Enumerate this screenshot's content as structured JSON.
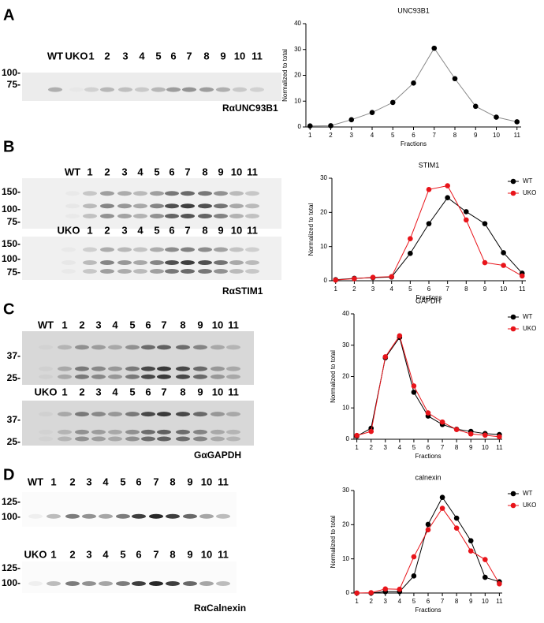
{
  "chart_data": [
    {
      "type": "line",
      "title": "UNC93B1",
      "xlabel": "Fractions",
      "ylabel": "Normalized to total",
      "x": [
        1,
        2,
        3,
        4,
        5,
        6,
        7,
        8,
        9,
        10,
        11
      ],
      "xlim": [
        0.8,
        11.2
      ],
      "xticks": [
        1,
        2,
        3,
        4,
        5,
        6,
        7,
        8,
        9,
        10,
        11
      ],
      "ylim": [
        0,
        40
      ],
      "yticks": [
        0,
        10,
        20,
        30,
        40
      ],
      "values": [
        0.4,
        0.5,
        2.8,
        5.6,
        9.5,
        17,
        30.5,
        18.7,
        8,
        3.8,
        2
      ],
      "line_color": "#888888",
      "marker_color": "#000000"
    },
    {
      "type": "line",
      "title": "STIM1",
      "xlabel": "Fractions",
      "ylabel": "Normalized to total",
      "x": [
        1,
        2,
        3,
        4,
        5,
        6,
        7,
        8,
        9,
        10,
        11
      ],
      "xlim": [
        0.8,
        11.2
      ],
      "xticks": [
        1,
        2,
        3,
        4,
        5,
        6,
        7,
        8,
        9,
        10,
        11
      ],
      "ylim": [
        0,
        30
      ],
      "yticks": [
        0,
        10,
        20,
        30
      ],
      "legend": "upper right",
      "series": [
        {
          "name": "WT",
          "color": "#000000",
          "values": [
            0.3,
            0.7,
            0.9,
            1.1,
            8,
            16.7,
            24.3,
            20.2,
            16.7,
            8.2,
            2.2
          ]
        },
        {
          "name": "UKO",
          "color": "#e8141a",
          "values": [
            0.2,
            0.6,
            1,
            1.2,
            12.3,
            26.7,
            27.8,
            17.8,
            5.3,
            4.5,
            1.4
          ]
        }
      ]
    },
    {
      "type": "line",
      "title": "GAPDH",
      "xlabel": "Fractions",
      "ylabel": "Normalized to total",
      "x": [
        1,
        2,
        3,
        4,
        5,
        6,
        7,
        8,
        9,
        10,
        11
      ],
      "xlim": [
        0.8,
        11.2
      ],
      "xticks": [
        1,
        2,
        3,
        4,
        5,
        6,
        7,
        8,
        9,
        10,
        11
      ],
      "ylim": [
        0,
        40
      ],
      "yticks": [
        0,
        10,
        20,
        30,
        40
      ],
      "legend": "upper right",
      "series": [
        {
          "name": "WT",
          "color": "#000000",
          "values": [
            1,
            3.5,
            26,
            32.5,
            15,
            7.4,
            4.7,
            3.2,
            2.5,
            1.8,
            1.5
          ]
        },
        {
          "name": "UKO",
          "color": "#e8141a",
          "values": [
            1.2,
            2.5,
            26.3,
            33,
            17,
            8.4,
            5.5,
            3.1,
            1.7,
            1.3,
            0.8
          ]
        }
      ]
    },
    {
      "type": "line",
      "title": "calnexin",
      "xlabel": "Fractions",
      "ylabel": "Normalized to total",
      "x": [
        1,
        2,
        3,
        4,
        5,
        6,
        7,
        8,
        9,
        10,
        11
      ],
      "xlim": [
        0.8,
        11.2
      ],
      "xticks": [
        1,
        2,
        3,
        4,
        5,
        6,
        7,
        8,
        9,
        10,
        11
      ],
      "ylim": [
        0,
        30
      ],
      "yticks": [
        0,
        10,
        20,
        30
      ],
      "legend": "upper right",
      "series": [
        {
          "name": "WT",
          "color": "#000000",
          "values": [
            0,
            0,
            0.4,
            0.4,
            5,
            20.1,
            28,
            21.9,
            15.3,
            4.6,
            3.3
          ]
        },
        {
          "name": "UKO",
          "color": "#e8141a",
          "values": [
            0,
            0.1,
            1.2,
            1.1,
            10.6,
            18.5,
            24.8,
            19,
            12.3,
            9.8,
            2.7
          ]
        }
      ]
    }
  ],
  "panels": [
    {
      "letter": "A",
      "antibody": "RαUNC93B1",
      "blots": [
        {
          "lanes": [
            "WT",
            "UKO",
            "1",
            "2",
            "3",
            "4",
            "5",
            "6",
            "7",
            "8",
            "9",
            "10",
            "11"
          ],
          "markers": [
            "100-",
            "75-"
          ]
        }
      ]
    },
    {
      "letter": "B",
      "antibody": "RαSTIM1",
      "blots": [
        {
          "lanes": [
            "WT",
            "1",
            "2",
            "3",
            "4",
            "5",
            "6",
            "7",
            "8",
            "9",
            "10",
            "11"
          ],
          "markers": [
            "150-",
            "100-",
            "75-"
          ]
        },
        {
          "lanes": [
            "UKO",
            "1",
            "2",
            "3",
            "4",
            "5",
            "6",
            "7",
            "8",
            "9",
            "10",
            "11"
          ],
          "markers": [
            "150-",
            "100-",
            "75-"
          ]
        }
      ]
    },
    {
      "letter": "C",
      "antibody": "GαGAPDH",
      "blots": [
        {
          "lanes": [
            "WT",
            "1",
            "2",
            "3",
            "4",
            "5",
            "6",
            "7",
            "8",
            "9",
            "10",
            "11"
          ],
          "markers": [
            "37-",
            "25-"
          ]
        },
        {
          "lanes": [
            "UKO",
            "1",
            "2",
            "3",
            "4",
            "5",
            "6",
            "7",
            "8",
            "9",
            "10",
            "11"
          ],
          "markers": [
            "37-",
            "25-"
          ]
        }
      ]
    },
    {
      "letter": "D",
      "antibody": "RαCalnexin",
      "blots": [
        {
          "lanes": [
            "WT",
            "1",
            "2",
            "3",
            "4",
            "5",
            "6",
            "7",
            "8",
            "9",
            "10",
            "11"
          ],
          "markers": [
            "125-",
            "100-"
          ]
        },
        {
          "lanes": [
            "UKO",
            "1",
            "2",
            "3",
            "4",
            "5",
            "6",
            "7",
            "8",
            "9",
            "10",
            "11"
          ],
          "markers": [
            "125-",
            "100-"
          ]
        }
      ]
    }
  ]
}
